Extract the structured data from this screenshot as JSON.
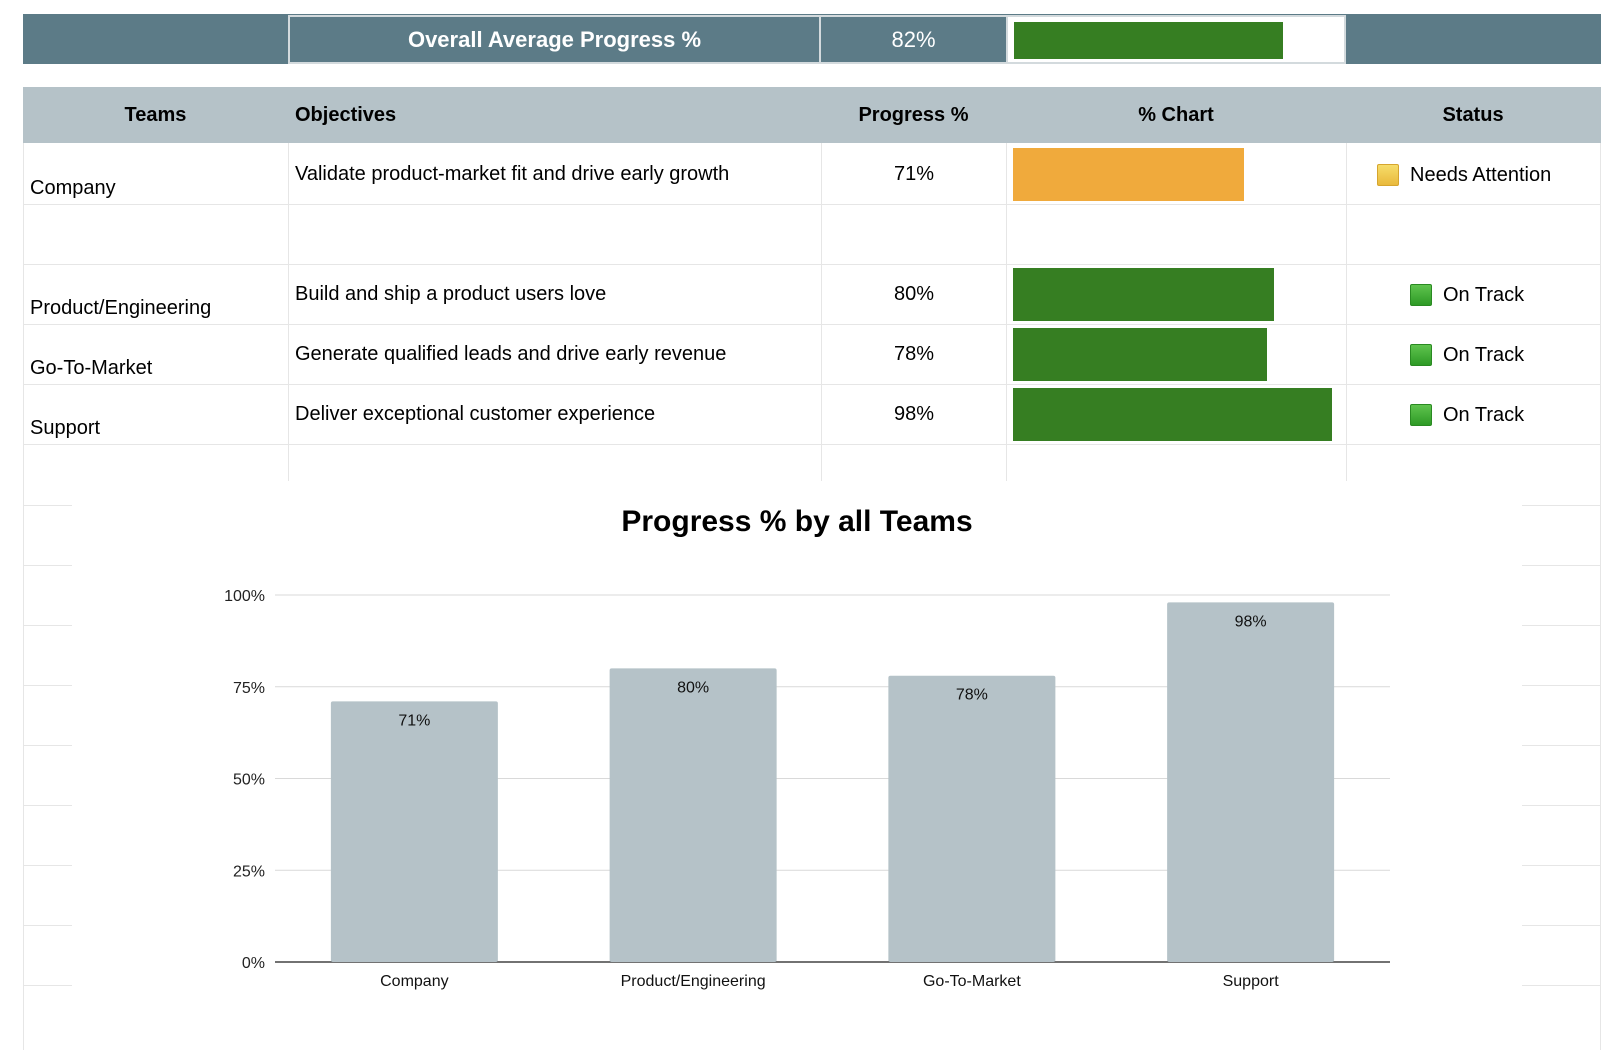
{
  "summary": {
    "title": "Overall Average Progress %",
    "value": "82%",
    "fill": 0.82
  },
  "table": {
    "headers": {
      "teams": "Teams",
      "objectives": "Objectives",
      "progress": "Progress %",
      "chart": "% Chart",
      "status": "Status"
    },
    "rows": [
      {
        "team": "Company",
        "objective": "Validate product-market fit and drive early growth",
        "progress": "71%",
        "fill": 0.71,
        "status": "Needs Attention",
        "status_icon": "yellow-square-icon",
        "bar_color": "#f0aa3c"
      },
      {
        "team": "Product/Engineering",
        "objective": "Build and ship a product users love",
        "progress": "80%",
        "fill": 0.8,
        "status": "On Track",
        "status_icon": "green-square-icon",
        "bar_color": "#367e22"
      },
      {
        "team": "Go-To-Market",
        "objective": "Generate qualified leads and drive early revenue",
        "progress": "78%",
        "fill": 0.78,
        "status": "On Track",
        "status_icon": "green-square-icon",
        "bar_color": "#367e22"
      },
      {
        "team": "Support",
        "objective": "Deliver exceptional customer experience",
        "progress": "98%",
        "fill": 0.98,
        "status": "On Track",
        "status_icon": "green-square-icon",
        "bar_color": "#367e22"
      }
    ]
  },
  "colors": {
    "header_dark": "#5c7b87",
    "header_light": "#b5c2c8",
    "green": "#367e22",
    "orange": "#f0aa3c",
    "chart_bar": "#b5c2c8"
  },
  "chart_data": {
    "type": "bar",
    "title": "Progress % by all Teams",
    "categories": [
      "Company",
      "Product/Engineering",
      "Go-To-Market",
      "Support"
    ],
    "values": [
      71,
      80,
      78,
      98
    ],
    "data_labels": [
      "71%",
      "80%",
      "78%",
      "98%"
    ],
    "yticks": [
      "0%",
      "25%",
      "50%",
      "75%",
      "100%"
    ],
    "ylim": [
      0,
      100
    ],
    "xlabel": "",
    "ylabel": "",
    "grid": true,
    "legend": "none"
  }
}
